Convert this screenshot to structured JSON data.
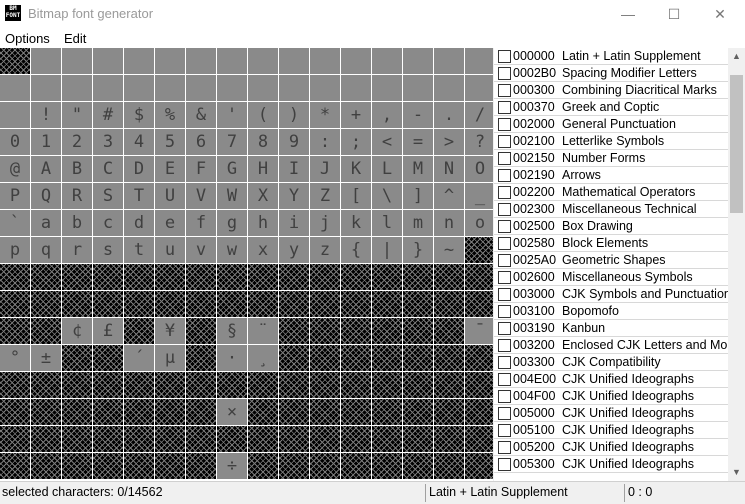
{
  "window": {
    "title": "Bitmap font generator",
    "icon_text": "BM FONT",
    "minimize": "—",
    "maximize": "☐",
    "close": "✕"
  },
  "menu": [
    "Options",
    "Edit"
  ],
  "grid": {
    "rows": [
      {
        "start": 0,
        "chars": [
          "",
          "",
          "",
          "",
          "",
          "",
          "",
          "",
          "",
          "",
          "",
          "",
          "",
          "",
          "",
          ""
        ]
      },
      {
        "start": 16,
        "chars": [
          "",
          "",
          "",
          "",
          "",
          "",
          "",
          "",
          "",
          "",
          "",
          "",
          "",
          "",
          "",
          ""
        ]
      },
      {
        "start": 32,
        "chars": [
          "",
          "!",
          "\"",
          "#",
          "$",
          "%",
          "&",
          "'",
          "(",
          ")",
          "*",
          "+",
          ",",
          "-",
          ".",
          "/"
        ]
      },
      {
        "start": 48,
        "chars": [
          "0",
          "1",
          "2",
          "3",
          "4",
          "5",
          "6",
          "7",
          "8",
          "9",
          ":",
          ";",
          "<",
          "=",
          ">",
          "?"
        ]
      },
      {
        "start": 64,
        "chars": [
          "@",
          "A",
          "B",
          "C",
          "D",
          "E",
          "F",
          "G",
          "H",
          "I",
          "J",
          "K",
          "L",
          "M",
          "N",
          "O"
        ]
      },
      {
        "start": 80,
        "chars": [
          "P",
          "Q",
          "R",
          "S",
          "T",
          "U",
          "V",
          "W",
          "X",
          "Y",
          "Z",
          "[",
          "\\",
          "]",
          "^",
          "_"
        ]
      },
      {
        "start": 96,
        "chars": [
          "`",
          "a",
          "b",
          "c",
          "d",
          "e",
          "f",
          "g",
          "h",
          "i",
          "j",
          "k",
          "l",
          "m",
          "n",
          "o"
        ]
      },
      {
        "start": 112,
        "chars": [
          "p",
          "q",
          "r",
          "s",
          "t",
          "u",
          "v",
          "w",
          "x",
          "y",
          "z",
          "{",
          "|",
          "}",
          "~",
          ""
        ]
      },
      {
        "start": 128,
        "chars": [
          "",
          "",
          "",
          "",
          "",
          "",
          "",
          "",
          "",
          "",
          "",
          "",
          "",
          "",
          "",
          ""
        ]
      },
      {
        "start": 144,
        "chars": [
          "",
          "",
          "",
          "",
          "",
          "",
          "",
          "",
          "",
          "",
          "",
          "",
          "",
          "",
          "",
          ""
        ]
      },
      {
        "start": 160,
        "chars": [
          "",
          "",
          "¢",
          "£",
          "",
          "¥",
          "",
          "§",
          "¨",
          "",
          "",
          "",
          "",
          "",
          "",
          "¯"
        ]
      },
      {
        "start": 176,
        "chars": [
          "°",
          "±",
          "",
          "",
          "´",
          "µ",
          "",
          "·",
          "¸",
          "",
          "",
          "",
          "",
          "",
          "",
          ""
        ]
      },
      {
        "start": 192,
        "chars": [
          "",
          "",
          "",
          "",
          "",
          "",
          "",
          "",
          "",
          "",
          "",
          "",
          "",
          "",
          "",
          ""
        ]
      },
      {
        "start": 208,
        "chars": [
          "",
          "",
          "",
          "",
          "",
          "",
          "",
          "×",
          "",
          "",
          "",
          "",
          "",
          "",
          "",
          ""
        ]
      },
      {
        "start": 224,
        "chars": [
          "",
          "",
          "",
          "",
          "",
          "",
          "",
          "",
          "",
          "",
          "",
          "",
          "",
          "",
          "",
          ""
        ]
      },
      {
        "start": 240,
        "chars": [
          "",
          "",
          "",
          "",
          "",
          "",
          "",
          "÷",
          "",
          "",
          "",
          "",
          "",
          "",
          "",
          ""
        ]
      }
    ],
    "available_codes": [
      32,
      33,
      34,
      35,
      36,
      37,
      38,
      39,
      40,
      41,
      42,
      43,
      44,
      45,
      46,
      47,
      48,
      49,
      50,
      51,
      52,
      53,
      54,
      55,
      56,
      57,
      58,
      59,
      60,
      61,
      62,
      63,
      64,
      65,
      66,
      67,
      68,
      69,
      70,
      71,
      72,
      73,
      74,
      75,
      76,
      77,
      78,
      79,
      80,
      81,
      82,
      83,
      84,
      85,
      86,
      87,
      88,
      89,
      90,
      91,
      92,
      93,
      94,
      95,
      96,
      97,
      98,
      99,
      100,
      101,
      102,
      103,
      104,
      105,
      106,
      107,
      108,
      109,
      110,
      111,
      112,
      113,
      114,
      115,
      116,
      117,
      118,
      119,
      120,
      121,
      122,
      123,
      124,
      125,
      126,
      162,
      163,
      165,
      167,
      168,
      175,
      176,
      177,
      180,
      181,
      183,
      184,
      215,
      247,
      1,
      2,
      3,
      4,
      5,
      6,
      7,
      8,
      9,
      10,
      11,
      12,
      13,
      14,
      15,
      16,
      17,
      18,
      19,
      20,
      21,
      22,
      23,
      24,
      25,
      26,
      27,
      28,
      29,
      30,
      31
    ]
  },
  "ranges": [
    {
      "code": "000000",
      "name": "Latin + Latin Supplement",
      "checked": false
    },
    {
      "code": "0002B0",
      "name": "Spacing Modifier Letters",
      "checked": false
    },
    {
      "code": "000300",
      "name": "Combining Diacritical Marks",
      "checked": false
    },
    {
      "code": "000370",
      "name": "Greek and Coptic",
      "checked": false
    },
    {
      "code": "002000",
      "name": "General Punctuation",
      "checked": false
    },
    {
      "code": "002100",
      "name": "Letterlike Symbols",
      "checked": false
    },
    {
      "code": "002150",
      "name": "Number Forms",
      "checked": false
    },
    {
      "code": "002190",
      "name": "Arrows",
      "checked": false
    },
    {
      "code": "002200",
      "name": "Mathematical Operators",
      "checked": false
    },
    {
      "code": "002300",
      "name": "Miscellaneous Technical",
      "checked": false
    },
    {
      "code": "002500",
      "name": "Box Drawing",
      "checked": false
    },
    {
      "code": "002580",
      "name": "Block Elements",
      "checked": false
    },
    {
      "code": "0025A0",
      "name": "Geometric Shapes",
      "checked": false
    },
    {
      "code": "002600",
      "name": "Miscellaneous Symbols",
      "checked": false
    },
    {
      "code": "003000",
      "name": "CJK Symbols and Punctuation",
      "checked": false
    },
    {
      "code": "003100",
      "name": "Bopomofo",
      "checked": false
    },
    {
      "code": "003190",
      "name": "Kanbun",
      "checked": false
    },
    {
      "code": "003200",
      "name": "Enclosed CJK Letters and Months",
      "checked": false
    },
    {
      "code": "003300",
      "name": "CJK Compatibility",
      "checked": false
    },
    {
      "code": "004E00",
      "name": "CJK Unified Ideographs",
      "checked": false
    },
    {
      "code": "004F00",
      "name": "CJK Unified Ideographs",
      "checked": false
    },
    {
      "code": "005000",
      "name": "CJK Unified Ideographs",
      "checked": false
    },
    {
      "code": "005100",
      "name": "CJK Unified Ideographs",
      "checked": false
    },
    {
      "code": "005200",
      "name": "CJK Unified Ideographs",
      "checked": false
    },
    {
      "code": "005300",
      "name": "CJK Unified Ideographs",
      "checked": false
    }
  ],
  "status": {
    "selected": "selected characters: 0/14562",
    "range": "Latin + Latin Supplement",
    "coords": "0 : 0"
  },
  "scroll_position": 0.04
}
